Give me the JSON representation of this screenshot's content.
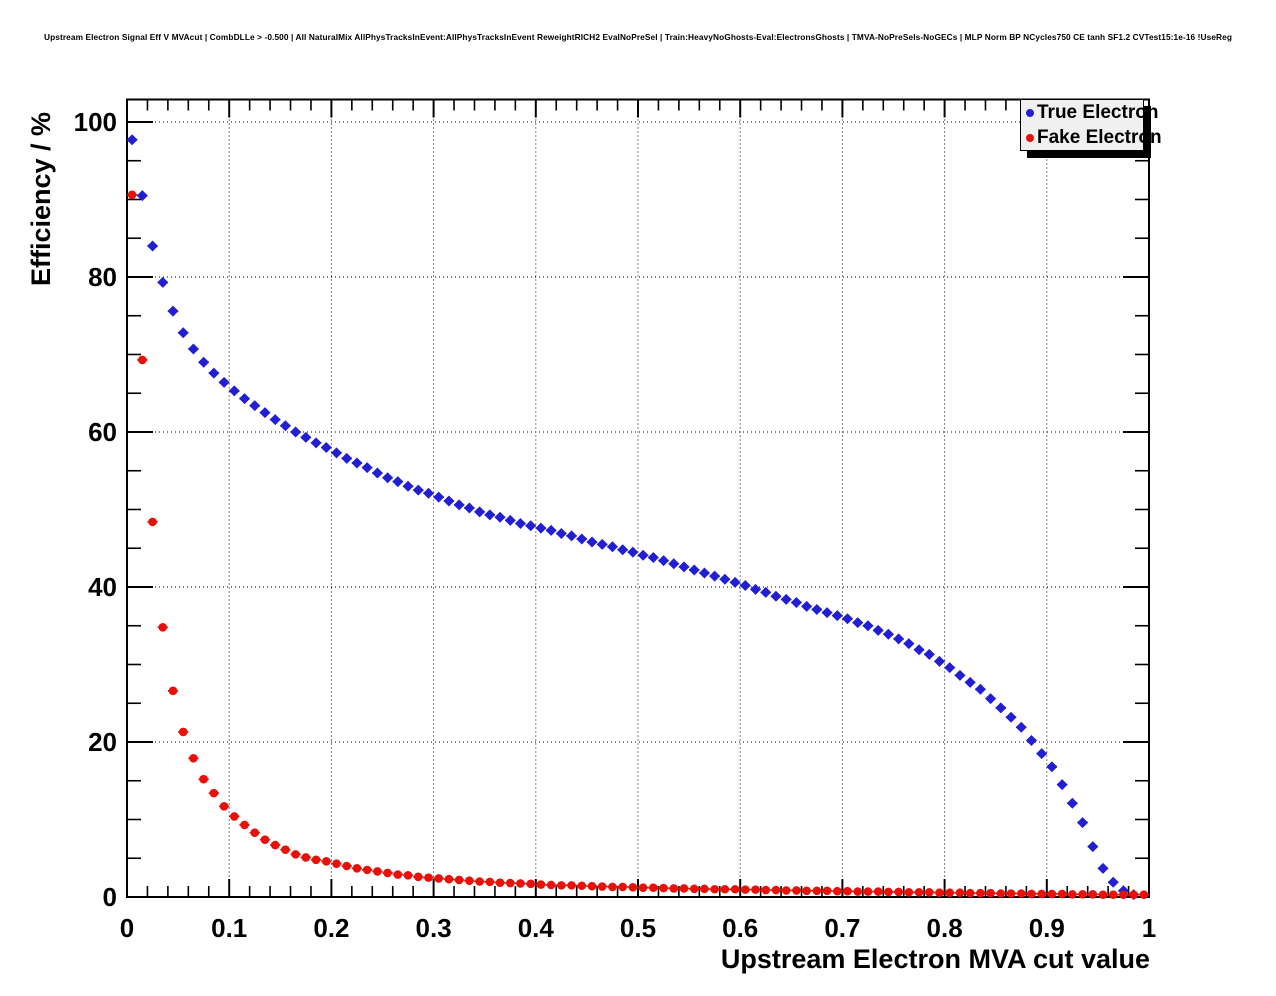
{
  "title": "Upstream Electron Signal Eff V MVAcut | CombDLLe > -0.500 | All NaturalMix AllPhysTracksInEvent:AllPhysTracksInEvent ReweightRICH2 EvalNoPreSel | Train:HeavyNoGhosts-Eval:ElectronsGhosts | TMVA-NoPreSels-NoGECs | MLP Norm BP NCycles750 CE tanh SF1.2 CVTest15:1e-16 !UseReg",
  "colors": {
    "true_electron": "#221ed1",
    "fake_electron": "#e8110a",
    "axis": "#000000",
    "legend_fill": "#f0f0f0",
    "background": "#ffffff"
  },
  "legend": {
    "items": [
      {
        "label": "True Electron",
        "color": "#221ed1"
      },
      {
        "label": "Fake Electron",
        "color": "#e8110a"
      }
    ]
  },
  "chart_data": {
    "type": "scatter",
    "title": "Upstream Electron Signal Eff V MVAcut | CombDLLe > -0.500 | All NaturalMix AllPhysTracksInEvent:AllPhysTracksInEvent ReweightRICH2 EvalNoPreSel | Train:HeavyNoGhosts-Eval:ElectronsGhosts | TMVA-NoPreSels-NoGECs | MLP Norm BP NCycles750 CE tanh SF1.2 CVTest15:1e-16 !UseReg",
    "xlabel": "Upstream Electron MVA cut value",
    "ylabel": "Efficiency / %",
    "xlim": [
      0,
      1
    ],
    "ylim": [
      0,
      102.9
    ],
    "grid": true,
    "grid_style": "dotted",
    "legend_position": "top-right",
    "x_ticks": [
      {
        "v": 0,
        "label": "0"
      },
      {
        "v": 0.1,
        "label": "0.1"
      },
      {
        "v": 0.2,
        "label": "0.2"
      },
      {
        "v": 0.3,
        "label": "0.3"
      },
      {
        "v": 0.4,
        "label": "0.4"
      },
      {
        "v": 0.5,
        "label": "0.5"
      },
      {
        "v": 0.6,
        "label": "0.6"
      },
      {
        "v": 0.7,
        "label": "0.7"
      },
      {
        "v": 0.8,
        "label": "0.8"
      },
      {
        "v": 0.9,
        "label": "0.9"
      },
      {
        "v": 1,
        "label": "1"
      }
    ],
    "y_ticks": [
      {
        "v": 0,
        "label": "0"
      },
      {
        "v": 20,
        "label": "20"
      },
      {
        "v": 40,
        "label": "40"
      },
      {
        "v": 60,
        "label": "60"
      },
      {
        "v": 80,
        "label": "80"
      },
      {
        "v": 100,
        "label": "100"
      }
    ],
    "x_minor_step": 0.02,
    "y_minor_step": 5,
    "series": [
      {
        "name": "True Electron",
        "color": "#221ed1",
        "marker": "diamond",
        "x_start": 0.005,
        "x_step": 0.01,
        "x_half_bin": 0.005,
        "values": [
          97.7,
          90.5,
          84.0,
          79.3,
          75.6,
          72.8,
          70.7,
          69.0,
          67.6,
          66.4,
          65.3,
          64.3,
          63.4,
          62.5,
          61.6,
          60.8,
          60.0,
          59.3,
          58.6,
          58.0,
          57.3,
          56.6,
          56.0,
          55.4,
          54.7,
          54.1,
          53.6,
          53.0,
          52.5,
          52.1,
          51.6,
          51.1,
          50.6,
          50.2,
          49.7,
          49.3,
          49.0,
          48.6,
          48.2,
          47.9,
          47.6,
          47.3,
          46.9,
          46.6,
          46.2,
          45.8,
          45.5,
          45.2,
          44.8,
          44.5,
          44.1,
          43.8,
          43.4,
          43.0,
          42.6,
          42.2,
          41.8,
          41.4,
          41.0,
          40.6,
          40.2,
          39.7,
          39.3,
          38.8,
          38.4,
          38.0,
          37.5,
          37.1,
          36.7,
          36.3,
          35.9,
          35.4,
          35.0,
          34.4,
          33.9,
          33.3,
          32.7,
          31.9,
          31.3,
          30.4,
          29.6,
          28.6,
          27.7,
          26.8,
          25.6,
          24.4,
          23.2,
          21.9,
          20.2,
          18.5,
          16.8,
          14.5,
          12.1,
          9.6,
          6.5,
          3.7,
          1.9,
          0.8,
          0.3
        ]
      },
      {
        "name": "Fake Electron",
        "color": "#e8110a",
        "marker": "circle",
        "x_start": 0.005,
        "x_step": 0.01,
        "x_half_bin": 0.005,
        "values": [
          90.6,
          69.3,
          48.4,
          34.8,
          26.6,
          21.3,
          17.9,
          15.2,
          13.4,
          11.7,
          10.4,
          9.3,
          8.3,
          7.4,
          6.7,
          6.1,
          5.5,
          5.1,
          4.8,
          4.6,
          4.3,
          4.0,
          3.7,
          3.5,
          3.3,
          3.1,
          2.9,
          2.8,
          2.6,
          2.5,
          2.4,
          2.3,
          2.2,
          2.1,
          2.0,
          1.95,
          1.85,
          1.8,
          1.75,
          1.7,
          1.6,
          1.55,
          1.5,
          1.5,
          1.45,
          1.4,
          1.35,
          1.3,
          1.3,
          1.25,
          1.2,
          1.2,
          1.15,
          1.1,
          1.1,
          1.05,
          1.05,
          1.0,
          1.0,
          1.0,
          0.95,
          0.95,
          0.9,
          0.9,
          0.85,
          0.85,
          0.8,
          0.8,
          0.8,
          0.75,
          0.75,
          0.7,
          0.7,
          0.7,
          0.65,
          0.65,
          0.6,
          0.6,
          0.6,
          0.55,
          0.55,
          0.55,
          0.5,
          0.5,
          0.5,
          0.45,
          0.45,
          0.45,
          0.4,
          0.4,
          0.4,
          0.4,
          0.35,
          0.35,
          0.35,
          0.3,
          0.3,
          0.3,
          0.3,
          0.3
        ]
      }
    ]
  }
}
